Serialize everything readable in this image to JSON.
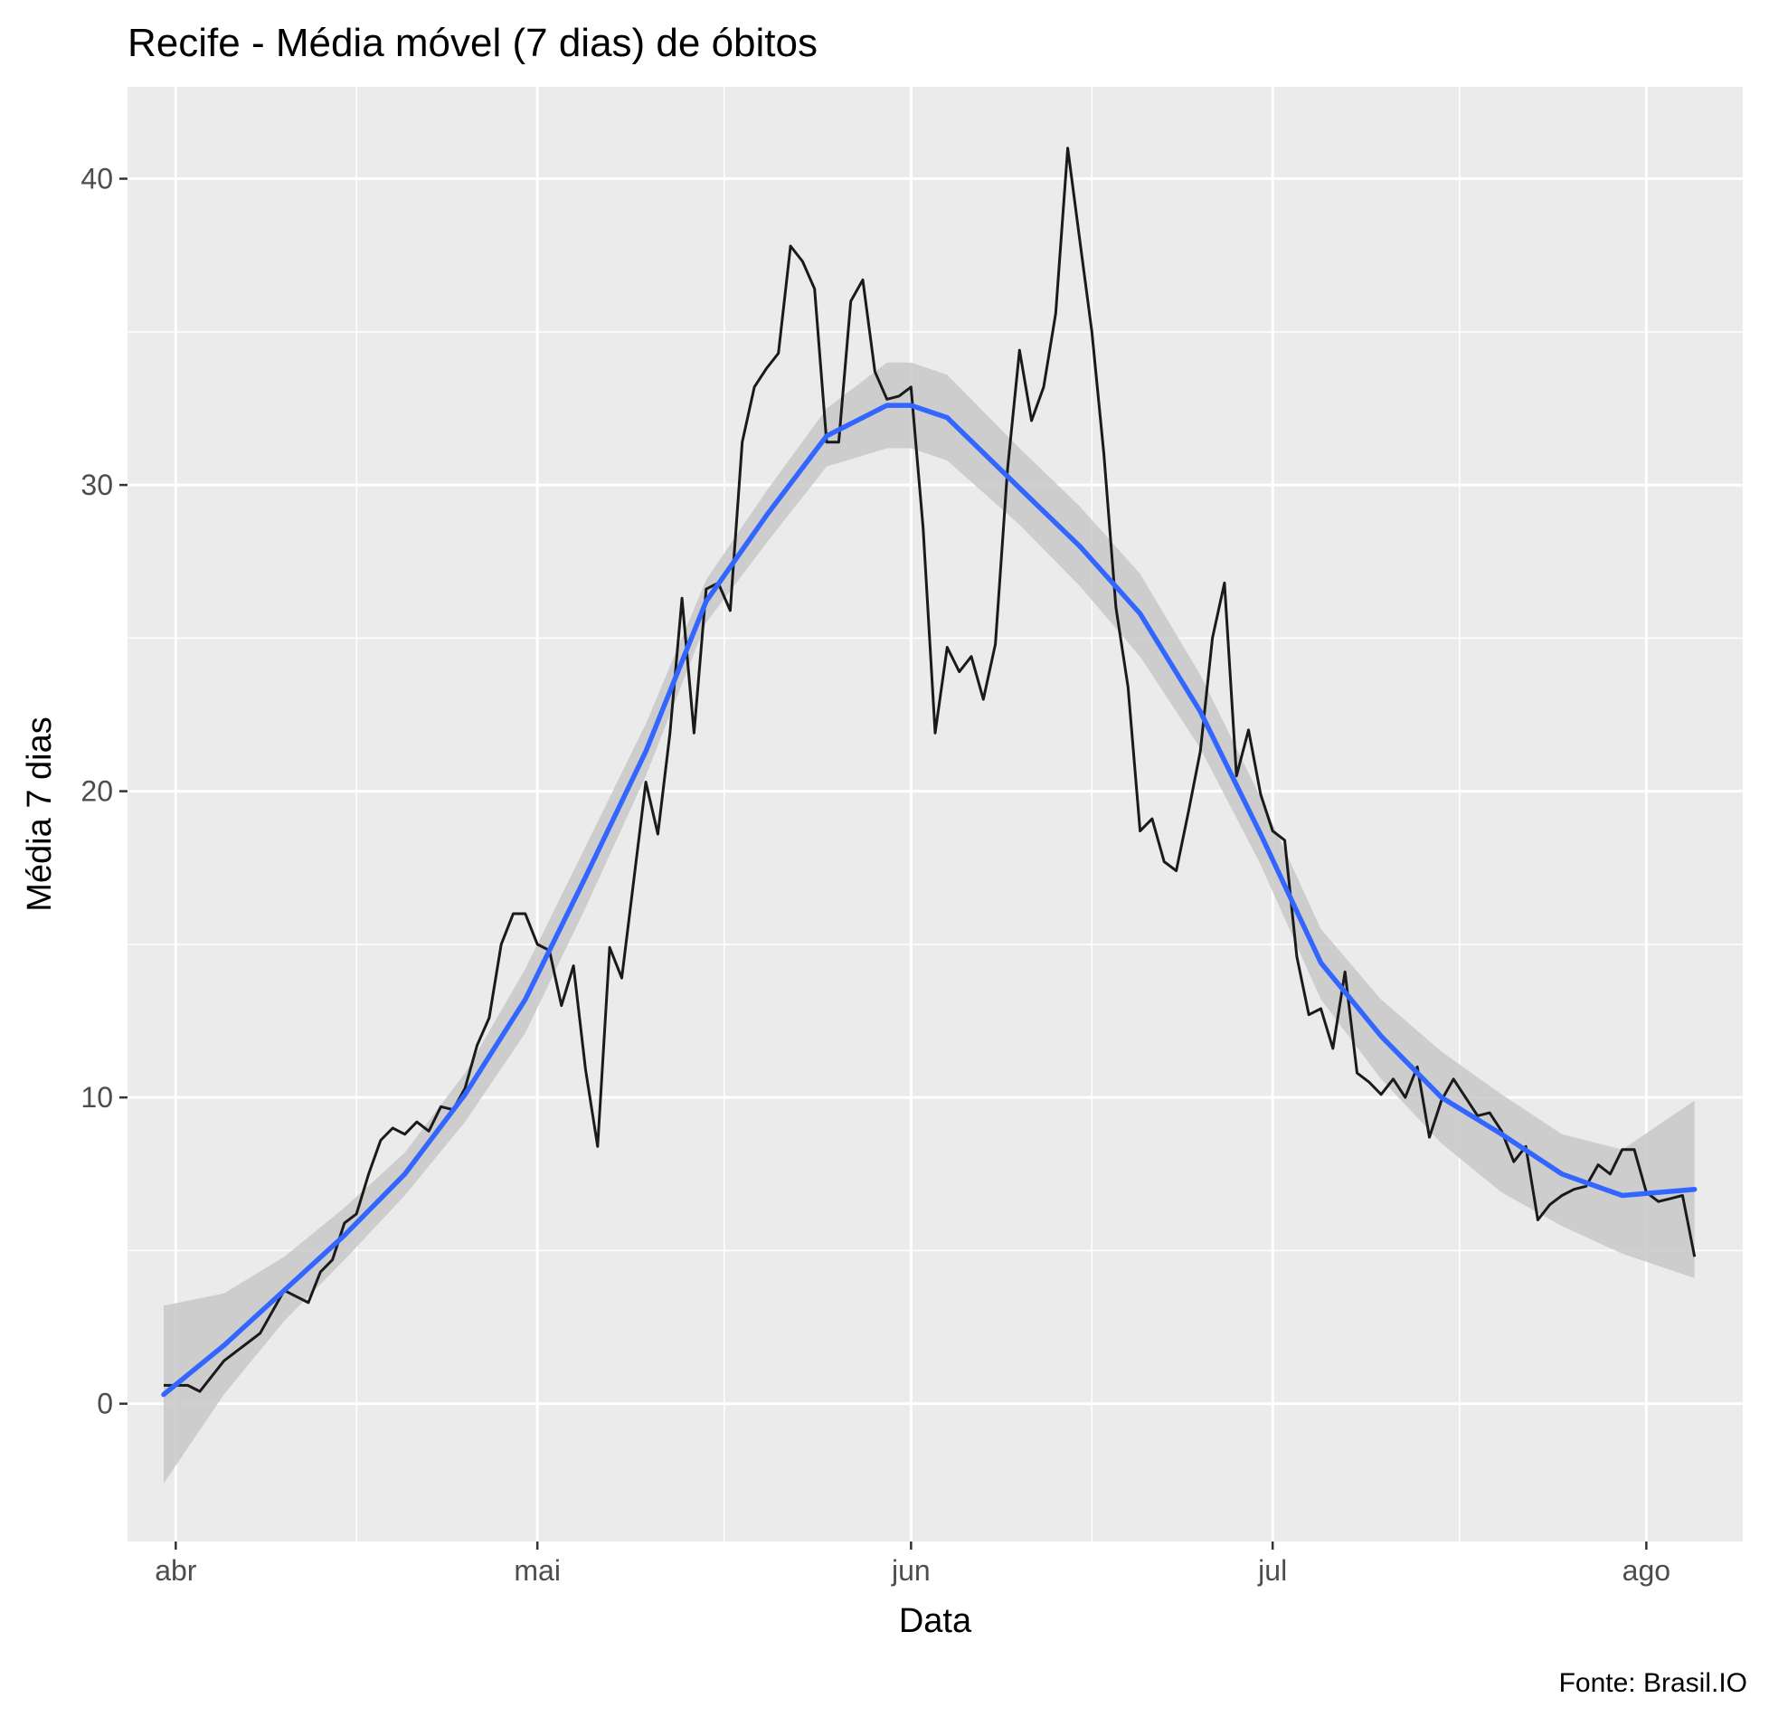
{
  "chart_data": {
    "type": "line",
    "title": "Recife - Média móvel (7 dias) de óbitos",
    "xlabel": "Data",
    "ylabel": "Média 7 dias",
    "caption": "Fonte: Brasil.IO",
    "x_range": [
      "2020-03-28",
      "2020-08-09"
    ],
    "ylim": [
      -4.5,
      43
    ],
    "y_ticks": [
      0,
      10,
      20,
      30,
      40
    ],
    "x_ticks": [
      {
        "date": "2020-04-01",
        "label": "abr"
      },
      {
        "date": "2020-05-01",
        "label": "mai"
      },
      {
        "date": "2020-06-01",
        "label": "jun"
      },
      {
        "date": "2020-07-01",
        "label": "jul"
      },
      {
        "date": "2020-08-01",
        "label": "ago"
      }
    ],
    "grid": true,
    "colors": {
      "panel_background": "#ebebeb",
      "grid": "#ffffff",
      "line": "#1a1a1a",
      "smooth": "#3366ff",
      "ribbon": "#c8c8c8"
    },
    "series": [
      {
        "kind": "line",
        "x": [
          "2020-03-31",
          "2020-04-01",
          "2020-04-02",
          "2020-04-03",
          "2020-04-04",
          "2020-04-05",
          "2020-04-06",
          "2020-04-07",
          "2020-04-08",
          "2020-04-09",
          "2020-04-10",
          "2020-04-11",
          "2020-04-12",
          "2020-04-13",
          "2020-04-14",
          "2020-04-15",
          "2020-04-16",
          "2020-04-17",
          "2020-04-18",
          "2020-04-19",
          "2020-04-20",
          "2020-04-21",
          "2020-04-22",
          "2020-04-23",
          "2020-04-24",
          "2020-04-25",
          "2020-04-26",
          "2020-04-27",
          "2020-04-28",
          "2020-04-29",
          "2020-04-30",
          "2020-05-01",
          "2020-05-02",
          "2020-05-03",
          "2020-05-04",
          "2020-05-05",
          "2020-05-06",
          "2020-05-07",
          "2020-05-08",
          "2020-05-09",
          "2020-05-10",
          "2020-05-11",
          "2020-05-12",
          "2020-05-13",
          "2020-05-14",
          "2020-05-15",
          "2020-05-16",
          "2020-05-17",
          "2020-05-18",
          "2020-05-19",
          "2020-05-20",
          "2020-05-21",
          "2020-05-22",
          "2020-05-23",
          "2020-05-24",
          "2020-05-25",
          "2020-05-26",
          "2020-05-27",
          "2020-05-28",
          "2020-05-29",
          "2020-05-30",
          "2020-05-31",
          "2020-06-01",
          "2020-06-02",
          "2020-06-03",
          "2020-06-04",
          "2020-06-05",
          "2020-06-06",
          "2020-06-07",
          "2020-06-08",
          "2020-06-09",
          "2020-06-10",
          "2020-06-11",
          "2020-06-12",
          "2020-06-13",
          "2020-06-14",
          "2020-06-15",
          "2020-06-16",
          "2020-06-17",
          "2020-06-18",
          "2020-06-19",
          "2020-06-20",
          "2020-06-21",
          "2020-06-22",
          "2020-06-23",
          "2020-06-24",
          "2020-06-25",
          "2020-06-26",
          "2020-06-27",
          "2020-06-28",
          "2020-06-29",
          "2020-06-30",
          "2020-07-01",
          "2020-07-02",
          "2020-07-03",
          "2020-07-04",
          "2020-07-05",
          "2020-07-06",
          "2020-07-07",
          "2020-07-08",
          "2020-07-09",
          "2020-07-10",
          "2020-07-11",
          "2020-07-12",
          "2020-07-13",
          "2020-07-14",
          "2020-07-15",
          "2020-07-16",
          "2020-07-17",
          "2020-07-18",
          "2020-07-19",
          "2020-07-20",
          "2020-07-21",
          "2020-07-22",
          "2020-07-23",
          "2020-07-24",
          "2020-07-25",
          "2020-07-26",
          "2020-07-27",
          "2020-07-28",
          "2020-07-29",
          "2020-07-30",
          "2020-07-31",
          "2020-08-01",
          "2020-08-02",
          "2020-08-03",
          "2020-08-04",
          "2020-08-05"
        ],
        "y": [
          0.6,
          0.6,
          0.6,
          0.4,
          0.9,
          1.4,
          1.7,
          2.0,
          2.3,
          3.0,
          3.7,
          3.5,
          3.3,
          4.3,
          4.7,
          5.9,
          6.2,
          7.5,
          8.6,
          9.0,
          8.8,
          9.2,
          8.9,
          9.7,
          9.6,
          10.3,
          11.7,
          12.6,
          15.0,
          16.0,
          16.0,
          15.0,
          14.8,
          13.0,
          14.3,
          10.9,
          8.4,
          14.9,
          13.9,
          17.1,
          20.3,
          18.6,
          21.9,
          26.3,
          21.9,
          26.6,
          26.8,
          25.9,
          31.4,
          33.2,
          33.8,
          34.3,
          37.8,
          37.3,
          36.4,
          31.4,
          31.4,
          36.0,
          36.7,
          33.7,
          32.8,
          32.9,
          33.2,
          28.6,
          21.9,
          24.7,
          23.9,
          24.4,
          23.0,
          24.8,
          30.5,
          34.4,
          32.1,
          33.2,
          35.6,
          41.0,
          38.0,
          35.0,
          31.0,
          26.0,
          23.4,
          18.7,
          19.1,
          17.7,
          17.4,
          19.3,
          21.3,
          25.0,
          26.8,
          20.5,
          22.0,
          19.9,
          18.7,
          18.4,
          14.6,
          12.7,
          12.9,
          11.6,
          14.1,
          10.8,
          10.5,
          10.1,
          10.6,
          10.0,
          11.0,
          8.7,
          9.9,
          10.6,
          10.0,
          9.4,
          9.5,
          8.9,
          7.9,
          8.4,
          6.0,
          6.5,
          6.8,
          7.0,
          7.1,
          7.8,
          7.5,
          8.3,
          8.3,
          6.9,
          6.6,
          6.7,
          6.8,
          4.8
        ]
      },
      {
        "kind": "smooth",
        "x": [
          "2020-03-31",
          "2020-04-05",
          "2020-04-10",
          "2020-04-15",
          "2020-04-20",
          "2020-04-25",
          "2020-04-30",
          "2020-05-05",
          "2020-05-10",
          "2020-05-15",
          "2020-05-20",
          "2020-05-25",
          "2020-05-30",
          "2020-06-01",
          "2020-06-04",
          "2020-06-10",
          "2020-06-15",
          "2020-06-20",
          "2020-06-25",
          "2020-06-30",
          "2020-07-05",
          "2020-07-10",
          "2020-07-15",
          "2020-07-20",
          "2020-07-25",
          "2020-07-30",
          "2020-08-05"
        ],
        "y": [
          0.3,
          1.9,
          3.7,
          5.5,
          7.5,
          10.1,
          13.2,
          17.2,
          21.3,
          26.2,
          29.0,
          31.6,
          32.6,
          32.6,
          32.2,
          29.9,
          28.0,
          25.8,
          22.6,
          18.6,
          14.4,
          12.0,
          10.0,
          8.8,
          7.5,
          6.8,
          7.0
        ],
        "ymin": [
          -2.6,
          0.3,
          2.7,
          4.7,
          6.8,
          9.2,
          12.1,
          16.2,
          20.5,
          25.5,
          28.1,
          30.6,
          31.2,
          31.2,
          30.8,
          28.7,
          26.7,
          24.4,
          21.4,
          17.6,
          13.2,
          10.6,
          8.5,
          6.9,
          5.8,
          4.9,
          4.1
        ],
        "ymax": [
          3.2,
          3.6,
          4.8,
          6.4,
          8.2,
          10.8,
          14.2,
          18.2,
          22.2,
          26.9,
          29.8,
          32.5,
          34.0,
          34.0,
          33.6,
          31.2,
          29.3,
          27.1,
          23.8,
          19.8,
          15.5,
          13.2,
          11.5,
          10.1,
          8.8,
          8.3,
          9.9
        ]
      }
    ]
  }
}
